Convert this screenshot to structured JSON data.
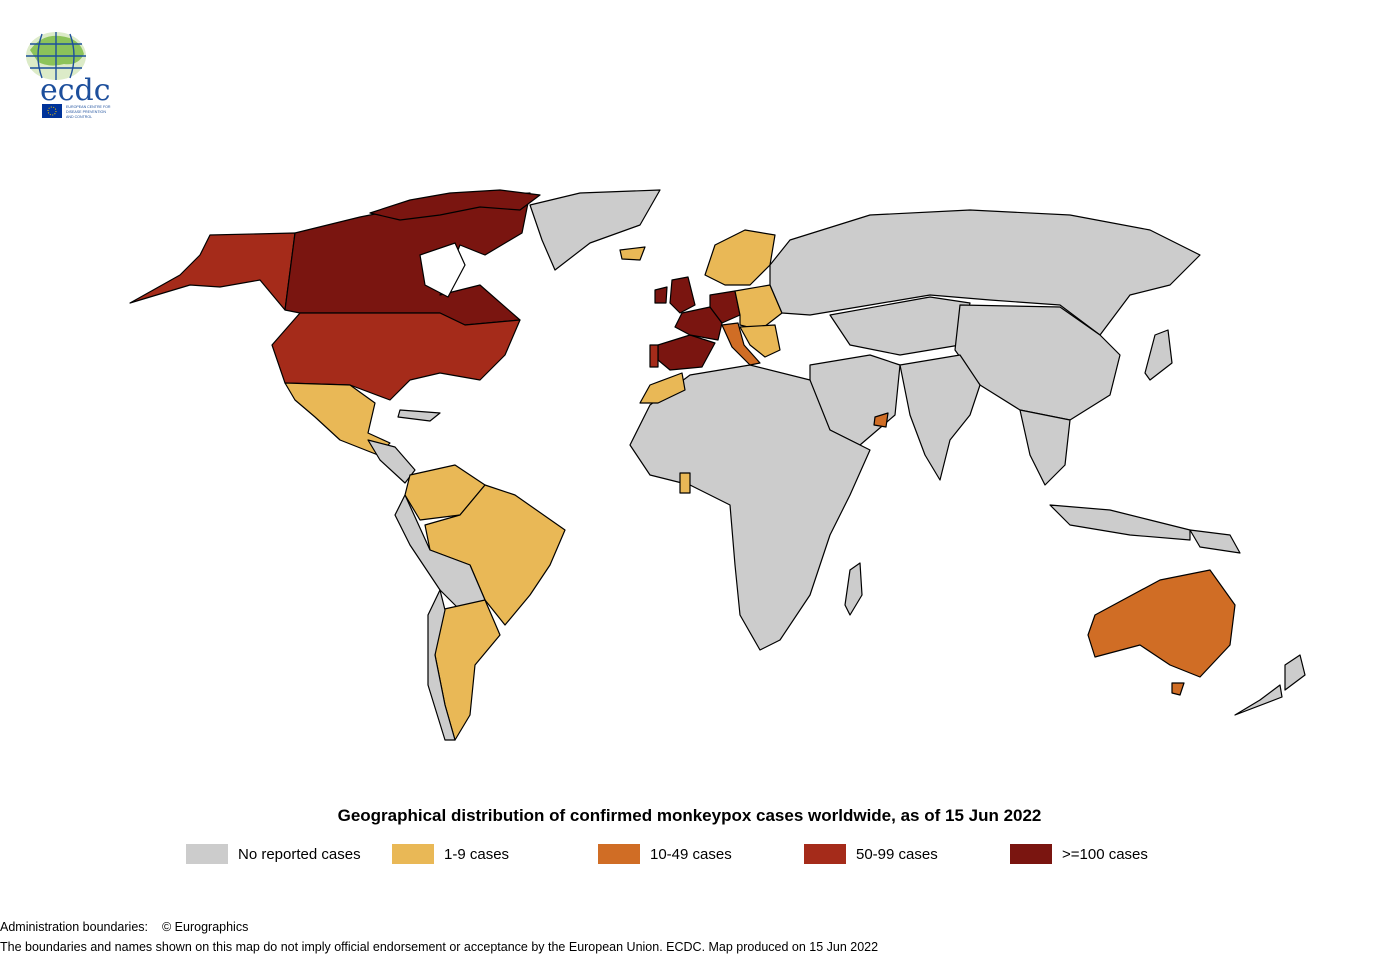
{
  "logo": {
    "wordmark": "ecdc",
    "subtitle_lines": [
      "EUROPEAN CENTRE FOR",
      "DISEASE PREVENTION",
      "AND CONTROL"
    ],
    "globe_color": "#7ab648",
    "line_color": "#1d4f9c",
    "eu_flag_color": "#003399"
  },
  "map": {
    "title": "Geographical distribution of confirmed monkeypox cases worldwide, as of 15 Jun 2022",
    "legend": [
      {
        "label": "No reported cases",
        "color": "#cccccc"
      },
      {
        "label": "1-9 cases",
        "color": "#e9b856"
      },
      {
        "label": "10-49 cases",
        "color": "#d06d25"
      },
      {
        "label": "50-99 cases",
        "color": "#a52b1a"
      },
      {
        "label": ">=100 cases",
        "color": "#7a1510"
      }
    ]
  },
  "footer": {
    "admin_label": "Administration boundaries:",
    "admin_value": "© Eurographics",
    "disclaimer": "The boundaries and names shown on this map do not imply official endorsement or acceptance by the European Union. ECDC. Map produced on 15 Jun 2022"
  }
}
